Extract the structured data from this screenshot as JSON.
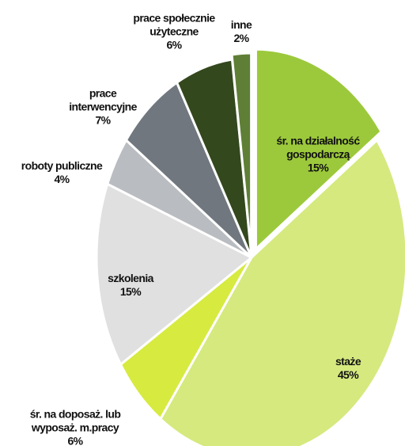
{
  "chart_data": {
    "type": "pie",
    "categories": [
      "śr. na działalność gospodarczą",
      "staże",
      "śr. na doposaż. lub wyposaż. m.pracy",
      "szkolenia",
      "roboty publiczne",
      "prace interwencyjne",
      "prace społecznie użyteczne",
      "inne"
    ],
    "values": [
      15,
      45,
      6,
      15,
      4,
      7,
      6,
      2
    ],
    "value_labels": [
      "15%",
      "45%",
      "6%",
      "15%",
      "4%",
      "7%",
      "6%",
      "2%"
    ],
    "colors": [
      "#9cc93b",
      "#d5e97f",
      "#d7ea40",
      "#e0e0e0",
      "#b9bcc0",
      "#70777e",
      "#33481d",
      "#5f7f36"
    ]
  }
}
